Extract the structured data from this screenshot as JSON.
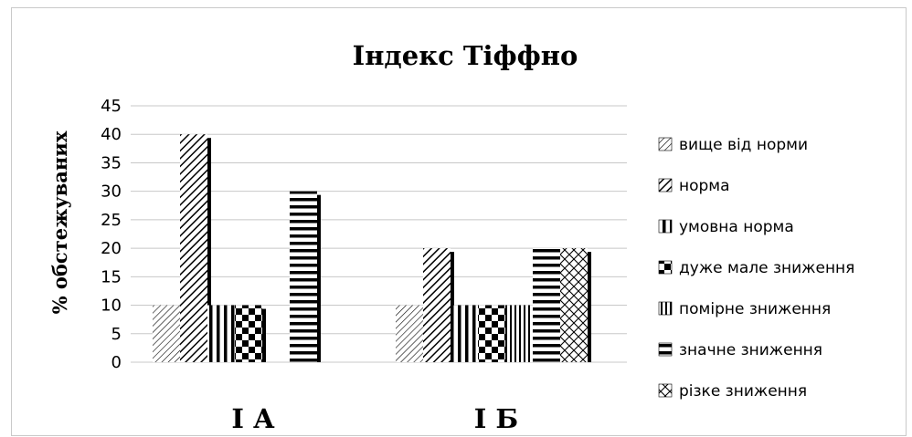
{
  "chart_data": {
    "type": "bar",
    "title": "Індекс Тіффно",
    "xlabel": "",
    "ylabel": "% обстежуваних",
    "ylim": [
      0,
      45
    ],
    "yticks": [
      0,
      5,
      10,
      15,
      20,
      25,
      30,
      35,
      40,
      45
    ],
    "grid": true,
    "legend_position": "right",
    "categories": [
      "І А",
      "І Б"
    ],
    "series": [
      {
        "name": "вище від норми",
        "pattern": "diag-fine",
        "values": [
          10,
          10
        ]
      },
      {
        "name": "норма",
        "pattern": "diag-bold",
        "values": [
          40,
          20
        ]
      },
      {
        "name": "умовна норма",
        "pattern": "vert-bold",
        "values": [
          10,
          10
        ]
      },
      {
        "name": "дуже мале зниження",
        "pattern": "checker",
        "values": [
          10,
          10
        ]
      },
      {
        "name": "помірне зниження",
        "pattern": "vert-fine",
        "values": [
          0,
          10
        ]
      },
      {
        "name": "значне зниження",
        "pattern": "horiz-bold",
        "values": [
          30,
          20
        ]
      },
      {
        "name": "різке зниження",
        "pattern": "crosshatch",
        "values": [
          0,
          20
        ]
      }
    ],
    "colors": {
      "bar_stroke": "#000000",
      "grid": "#c8c8c8",
      "shadow": "#000000"
    }
  }
}
